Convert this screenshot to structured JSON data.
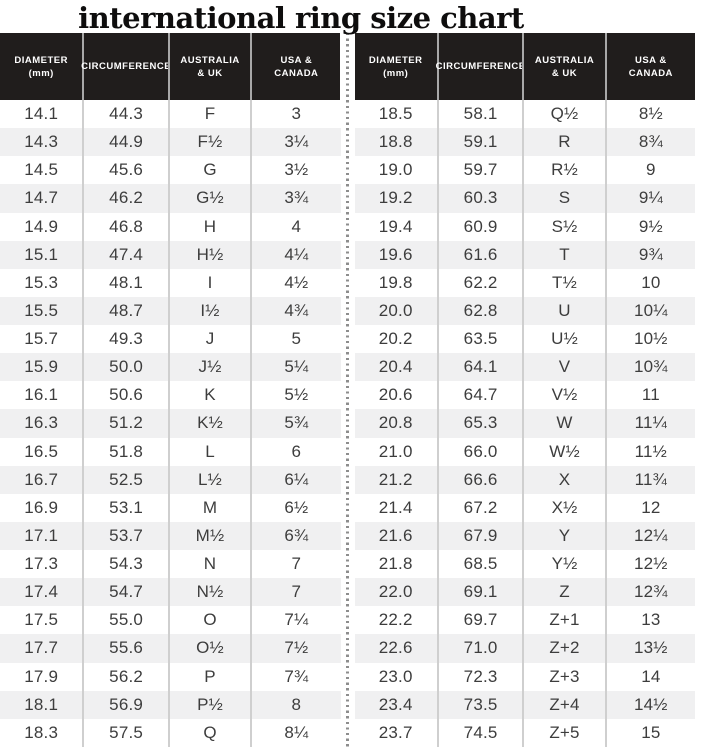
{
  "colors": {
    "header_bg": "#201d1c",
    "header_text": "#ffffff",
    "body_text": "#3d3d3d",
    "row_stripe": "#f0f0f1",
    "column_line": "#cfcfcf",
    "divider_dot": "#8d8d8d",
    "title_text": "#0e0d0d"
  },
  "header": {
    "columns": [
      {
        "key": "diameter",
        "line1": "DIAMETER",
        "line2": "(mm)"
      },
      {
        "key": "circumference",
        "line1": "CIRCUMFERENCE",
        "line2": ""
      },
      {
        "key": "australia-uk",
        "line1": "AUSTRALIA",
        "line2": "& UK"
      },
      {
        "key": "usa-canada",
        "line1": "USA &",
        "line2": "CANADA"
      }
    ]
  },
  "chart_data": {
    "type": "table",
    "title": "international ring size chart",
    "columns": [
      "DIAMETER (mm)",
      "CIRCUMFERENCE",
      "AUSTRALIA & UK",
      "USA & CANADA"
    ],
    "left_rows": [
      [
        "14.1",
        "44.3",
        "F",
        "3"
      ],
      [
        "14.3",
        "44.9",
        "F½",
        "3¼"
      ],
      [
        "14.5",
        "45.6",
        "G",
        "3½"
      ],
      [
        "14.7",
        "46.2",
        "G½",
        "3¾"
      ],
      [
        "14.9",
        "46.8",
        "H",
        "4"
      ],
      [
        "15.1",
        "47.4",
        "H½",
        "4¼"
      ],
      [
        "15.3",
        "48.1",
        "I",
        "4½"
      ],
      [
        "15.5",
        "48.7",
        "I½",
        "4¾"
      ],
      [
        "15.7",
        "49.3",
        "J",
        "5"
      ],
      [
        "15.9",
        "50.0",
        "J½",
        "5¼"
      ],
      [
        "16.1",
        "50.6",
        "K",
        "5½"
      ],
      [
        "16.3",
        "51.2",
        "K½",
        "5¾"
      ],
      [
        "16.5",
        "51.8",
        "L",
        "6"
      ],
      [
        "16.7",
        "52.5",
        "L½",
        "6¼"
      ],
      [
        "16.9",
        "53.1",
        "M",
        "6½"
      ],
      [
        "17.1",
        "53.7",
        "M½",
        "6¾"
      ],
      [
        "17.3",
        "54.3",
        "N",
        "7"
      ],
      [
        "17.4",
        "54.7",
        "N½",
        "7"
      ],
      [
        "17.5",
        "55.0",
        "O",
        "7¼"
      ],
      [
        "17.7",
        "55.6",
        "O½",
        "7½"
      ],
      [
        "17.9",
        "56.2",
        "P",
        "7¾"
      ],
      [
        "18.1",
        "56.9",
        "P½",
        "8"
      ],
      [
        "18.3",
        "57.5",
        "Q",
        "8¼"
      ]
    ],
    "right_rows": [
      [
        "18.5",
        "58.1",
        "Q½",
        "8½"
      ],
      [
        "18.8",
        "59.1",
        "R",
        "8¾"
      ],
      [
        "19.0",
        "59.7",
        "R½",
        "9"
      ],
      [
        "19.2",
        "60.3",
        "S",
        "9¼"
      ],
      [
        "19.4",
        "60.9",
        "S½",
        "9½"
      ],
      [
        "19.6",
        "61.6",
        "T",
        "9¾"
      ],
      [
        "19.8",
        "62.2",
        "T½",
        "10"
      ],
      [
        "20.0",
        "62.8",
        "U",
        "10¼"
      ],
      [
        "20.2",
        "63.5",
        "U½",
        "10½"
      ],
      [
        "20.4",
        "64.1",
        "V",
        "10¾"
      ],
      [
        "20.6",
        "64.7",
        "V½",
        "11"
      ],
      [
        "20.8",
        "65.3",
        "W",
        "11¼"
      ],
      [
        "21.0",
        "66.0",
        "W½",
        "11½"
      ],
      [
        "21.2",
        "66.6",
        "X",
        "11¾"
      ],
      [
        "21.4",
        "67.2",
        "X½",
        "12"
      ],
      [
        "21.6",
        "67.9",
        "Y",
        "12¼"
      ],
      [
        "21.8",
        "68.5",
        "Y½",
        "12½"
      ],
      [
        "22.0",
        "69.1",
        "Z",
        "12¾"
      ],
      [
        "22.2",
        "69.7",
        "Z+1",
        "13"
      ],
      [
        "22.6",
        "71.0",
        "Z+2",
        "13½"
      ],
      [
        "23.0",
        "72.3",
        "Z+3",
        "14"
      ],
      [
        "23.4",
        "73.5",
        "Z+4",
        "14½"
      ],
      [
        "23.7",
        "74.5",
        "Z+5",
        "15"
      ]
    ]
  }
}
